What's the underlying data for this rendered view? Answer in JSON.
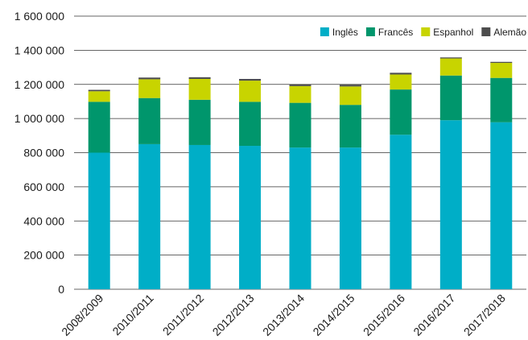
{
  "chart_data": {
    "type": "bar",
    "stacked": true,
    "categories": [
      "2008/2009",
      "2010/2011",
      "2011/2012",
      "2012/2013",
      "2013/2014",
      "2014/2015",
      "2015/2016",
      "2016/2017",
      "2017/2018"
    ],
    "series": [
      {
        "name": "Inglês",
        "color": "#00AEC7",
        "values": [
          800000,
          850000,
          845000,
          840000,
          830000,
          830000,
          905000,
          990000,
          978000
        ]
      },
      {
        "name": "Francês",
        "color": "#00966C",
        "values": [
          298000,
          270000,
          265000,
          258000,
          262000,
          250000,
          265000,
          262000,
          260000
        ]
      },
      {
        "name": "Espanhol",
        "color": "#C8D400",
        "values": [
          62000,
          110000,
          122000,
          124000,
          98000,
          108000,
          88000,
          100000,
          88000
        ]
      },
      {
        "name": "Alemão",
        "color": "#4D4D4D",
        "values": [
          8000,
          10000,
          10000,
          10000,
          10000,
          10000,
          10000,
          6000,
          6000
        ]
      }
    ],
    "ylim": [
      0,
      1600000
    ],
    "yticks": [
      0,
      200000,
      400000,
      600000,
      800000,
      1000000,
      1200000,
      1400000,
      1600000
    ],
    "ytick_labels": [
      "0",
      "200 000",
      "400 000",
      "600 000",
      "800 000",
      "1 000 000",
      "1 200 000",
      "1 400 000",
      "1 600 000"
    ],
    "grid": true,
    "legend_position": "top-right",
    "title": "",
    "xlabel": "",
    "ylabel": ""
  }
}
